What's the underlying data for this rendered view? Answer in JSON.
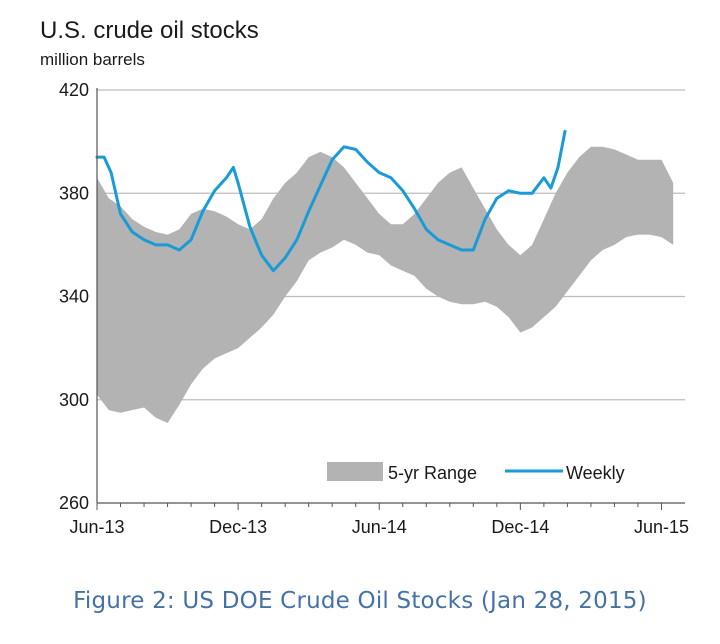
{
  "caption": "Figure 2: US DOE Crude Oil Stocks (Jan 28, 2015)",
  "chart_data": {
    "type": "area",
    "title": "U.S. crude oil stocks",
    "subtitle": "million barrels",
    "ylim": [
      260,
      420
    ],
    "yticks": [
      260,
      300,
      340,
      380,
      420
    ],
    "x_ticks": [
      {
        "label": "Jun-13",
        "month": 0
      },
      {
        "label": "Dec-13",
        "month": 6
      },
      {
        "label": "Jun-14",
        "month": 12
      },
      {
        "label": "Dec-14",
        "month": 18
      },
      {
        "label": "Jun-15",
        "month": 24
      }
    ],
    "grid": true,
    "legend_position": "bottom-right",
    "colors": {
      "range": "#b3b3b3",
      "weekly": "#1a9ad6"
    },
    "series": [
      {
        "name": "5-yr Range",
        "kind": "band",
        "x_months": [
          0,
          0.5,
          1,
          1.5,
          2,
          2.5,
          3,
          3.5,
          4,
          4.5,
          5,
          5.5,
          6,
          6.5,
          7,
          7.5,
          8,
          8.5,
          9,
          9.5,
          10,
          10.5,
          11,
          11.5,
          12,
          12.5,
          13,
          13.5,
          14,
          14.5,
          15,
          15.5,
          16,
          16.5,
          17,
          17.5,
          18,
          18.5,
          19,
          19.5,
          20,
          20.5,
          21,
          21.5,
          22,
          22.5,
          23,
          23.5,
          24,
          24.5
        ],
        "low": [
          302,
          296,
          295,
          296,
          297,
          293,
          291,
          298,
          306,
          312,
          316,
          318,
          320,
          324,
          328,
          333,
          340,
          346,
          354,
          357,
          359,
          362,
          360,
          357,
          356,
          352,
          350,
          348,
          343,
          340,
          338,
          337,
          337,
          338,
          336,
          332,
          326,
          328,
          332,
          336,
          342,
          348,
          354,
          358,
          360,
          363,
          364,
          364,
          363,
          360
        ],
        "high": [
          386,
          378,
          375,
          370,
          367,
          365,
          364,
          366,
          372,
          374,
          373,
          371,
          368,
          366,
          370,
          378,
          384,
          388,
          394,
          396,
          394,
          390,
          384,
          378,
          372,
          368,
          368,
          372,
          378,
          384,
          388,
          390,
          382,
          374,
          366,
          360,
          356,
          360,
          370,
          380,
          388,
          394,
          398,
          398,
          397,
          395,
          393,
          393,
          393,
          384
        ]
      },
      {
        "name": "Weekly",
        "kind": "line",
        "x_months": [
          0,
          0.3,
          0.6,
          1,
          1.5,
          2,
          2.5,
          3,
          3.5,
          4,
          4.5,
          5,
          5.5,
          5.8,
          6,
          6.5,
          7,
          7.5,
          8,
          8.5,
          9,
          9.5,
          10,
          10.5,
          11,
          11.5,
          12,
          12.5,
          13,
          13.5,
          14,
          14.5,
          15,
          15.5,
          16,
          16.5,
          17,
          17.5,
          18,
          18.5,
          19,
          19.3,
          19.6,
          19.9
        ],
        "values": [
          394,
          394,
          388,
          372,
          365,
          362,
          360,
          360,
          358,
          362,
          373,
          381,
          386,
          390,
          384,
          367,
          356,
          350,
          355,
          362,
          373,
          383,
          393,
          398,
          397,
          392,
          388,
          386,
          381,
          374,
          366,
          362,
          360,
          358,
          358,
          370,
          378,
          381,
          380,
          380,
          386,
          382,
          390,
          404
        ]
      }
    ]
  }
}
